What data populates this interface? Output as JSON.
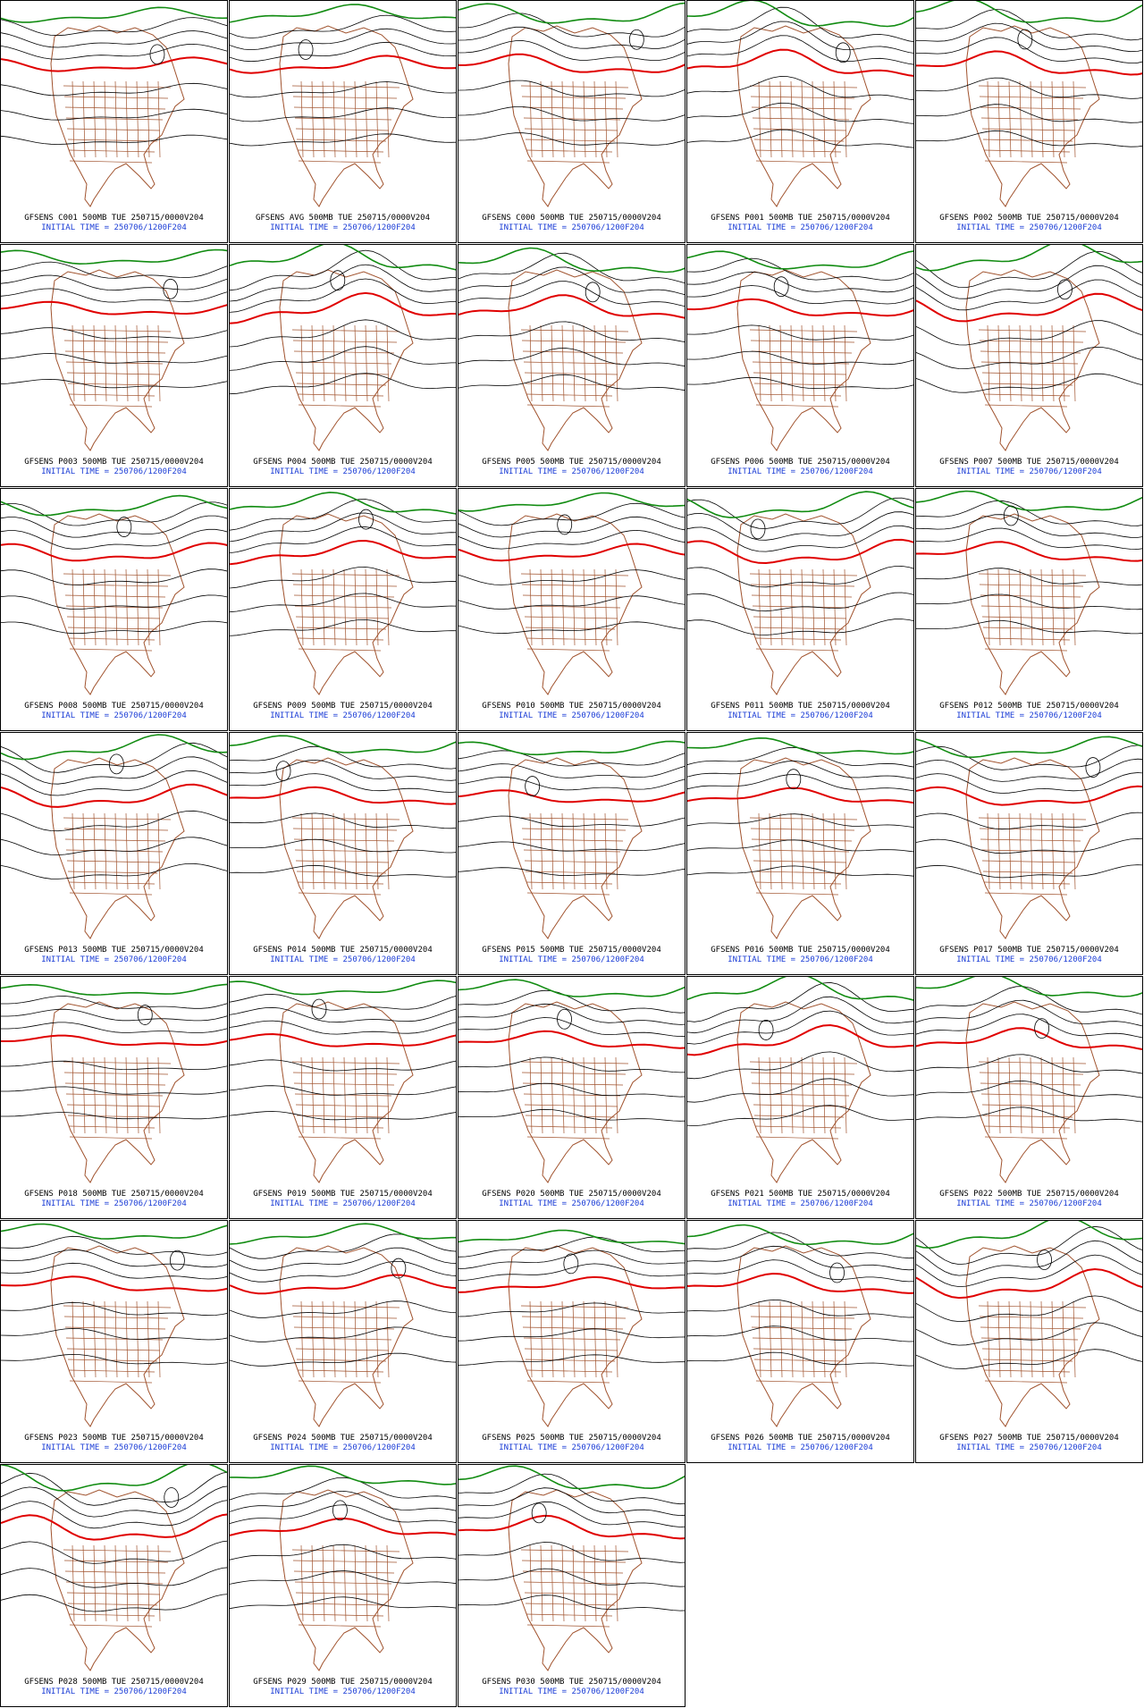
{
  "panels": [
    {
      "title": "GFSENS C001 500MB TUE 250715/0000V204",
      "initial": "INITIAL TIME = 250706/1200F204"
    },
    {
      "title": "GFSENS AVG 500MB TUE 250715/0000V204",
      "initial": "INITIAL TIME = 250706/1200F204"
    },
    {
      "title": "GFSENS C000 500MB TUE 250715/0000V204",
      "initial": "INITIAL TIME = 250706/1200F204"
    },
    {
      "title": "GFSENS P001 500MB TUE 250715/0000V204",
      "initial": "INITIAL TIME = 250706/1200F204"
    },
    {
      "title": "GFSENS P002 500MB TUE 250715/0000V204",
      "initial": "INITIAL TIME = 250706/1200F204"
    },
    {
      "title": "GFSENS P003 500MB TUE 250715/0000V204",
      "initial": "INITIAL TIME = 250706/1200F204"
    },
    {
      "title": "GFSENS P004 500MB TUE 250715/0000V204",
      "initial": "INITIAL TIME = 250706/1200F204"
    },
    {
      "title": "GFSENS P005 500MB TUE 250715/0000V204",
      "initial": "INITIAL TIME = 250706/1200F204"
    },
    {
      "title": "GFSENS P006 500MB TUE 250715/0000V204",
      "initial": "INITIAL TIME = 250706/1200F204"
    },
    {
      "title": "GFSENS P007 500MB TUE 250715/0000V204",
      "initial": "INITIAL TIME = 250706/1200F204"
    },
    {
      "title": "GFSENS P008 500MB TUE 250715/0000V204",
      "initial": "INITIAL TIME = 250706/1200F204"
    },
    {
      "title": "GFSENS P009 500MB TUE 250715/0000V204",
      "initial": "INITIAL TIME = 250706/1200F204"
    },
    {
      "title": "GFSENS P010 500MB TUE 250715/0000V204",
      "initial": "INITIAL TIME = 250706/1200F204"
    },
    {
      "title": "GFSENS P011 500MB TUE 250715/0000V204",
      "initial": "INITIAL TIME = 250706/1200F204"
    },
    {
      "title": "GFSENS P012 500MB TUE 250715/0000V204",
      "initial": "INITIAL TIME = 250706/1200F204"
    },
    {
      "title": "GFSENS P013 500MB TUE 250715/0000V204",
      "initial": "INITIAL TIME = 250706/1200F204"
    },
    {
      "title": "GFSENS P014 500MB TUE 250715/0000V204",
      "initial": "INITIAL TIME = 250706/1200F204"
    },
    {
      "title": "GFSENS P015 500MB TUE 250715/0000V204",
      "initial": "INITIAL TIME = 250706/1200F204"
    },
    {
      "title": "GFSENS P016 500MB TUE 250715/0000V204",
      "initial": "INITIAL TIME = 250706/1200F204"
    },
    {
      "title": "GFSENS P017 500MB TUE 250715/0000V204",
      "initial": "INITIAL TIME = 250706/1200F204"
    },
    {
      "title": "GFSENS P018 500MB TUE 250715/0000V204",
      "initial": "INITIAL TIME = 250706/1200F204"
    },
    {
      "title": "GFSENS P019 500MB TUE 250715/0000V204",
      "initial": "INITIAL TIME = 250706/1200F204"
    },
    {
      "title": "GFSENS P020 500MB TUE 250715/0000V204",
      "initial": "INITIAL TIME = 250706/1200F204"
    },
    {
      "title": "GFSENS P021 500MB TUE 250715/0000V204",
      "initial": "INITIAL TIME = 250706/1200F204"
    },
    {
      "title": "GFSENS P022 500MB TUE 250715/0000V204",
      "initial": "INITIAL TIME = 250706/1200F204"
    },
    {
      "title": "GFSENS P023 500MB TUE 250715/0000V204",
      "initial": "INITIAL TIME = 250706/1200F204"
    },
    {
      "title": "GFSENS P024 500MB TUE 250715/0000V204",
      "initial": "INITIAL TIME = 250706/1200F204"
    },
    {
      "title": "GFSENS P025 500MB TUE 250715/0000V204",
      "initial": "INITIAL TIME = 250706/1200F204"
    },
    {
      "title": "GFSENS P026 500MB TUE 250715/0000V204",
      "initial": "INITIAL TIME = 250706/1200F204"
    },
    {
      "title": "GFSENS P027 500MB TUE 250715/0000V204",
      "initial": "INITIAL TIME = 250706/1200F204"
    },
    {
      "title": "GFSENS P028 500MB TUE 250715/0000V204",
      "initial": "INITIAL TIME = 250706/1200F204"
    },
    {
      "title": "GFSENS P029 500MB TUE 250715/0000V204",
      "initial": "INITIAL TIME = 250706/1200F204"
    },
    {
      "title": "GFSENS P030 500MB TUE 250715/0000V204",
      "initial": "INITIAL TIME = 250706/1200F204"
    }
  ]
}
